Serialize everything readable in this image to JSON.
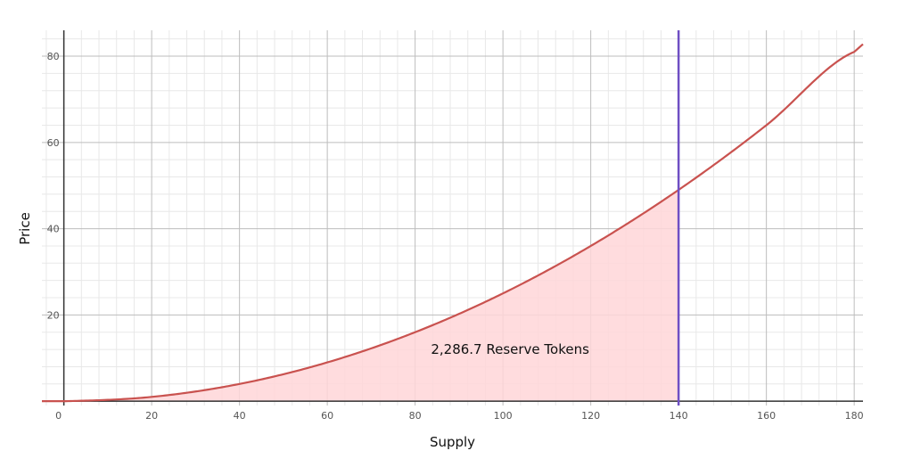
{
  "chart_data": {
    "type": "area",
    "xlabel": "Supply",
    "ylabel": "Price",
    "xlim": [
      -5,
      182
    ],
    "ylim": [
      -1,
      86
    ],
    "x_ticks": [
      0,
      20,
      40,
      60,
      80,
      100,
      120,
      140,
      160,
      180
    ],
    "y_ticks": [
      20,
      40,
      60,
      80
    ],
    "x_tick_labels": [
      "0",
      "20",
      "40",
      "60",
      "80",
      "100",
      "120",
      "140",
      "160",
      "180"
    ],
    "y_tick_labels": [
      "20",
      "40",
      "60",
      "80"
    ],
    "grid": true,
    "series": [
      {
        "x": [
          0,
          20,
          40,
          60,
          80,
          100,
          120,
          140,
          160,
          180
        ],
        "y": [
          0,
          1.0,
          4.0,
          9.0,
          16.0,
          25.0,
          36.0,
          49.0,
          64.0,
          81.0
        ],
        "color": "#c9524f"
      }
    ],
    "shaded_region": {
      "x_from": 0,
      "x_to": 140,
      "fill": "#ffd6d8"
    },
    "vertical_line": {
      "x": 140,
      "color": "#6f4fc4"
    },
    "annotation": {
      "text": "2,286.7 Reserve Tokens",
      "x": 100,
      "y": 12
    }
  }
}
